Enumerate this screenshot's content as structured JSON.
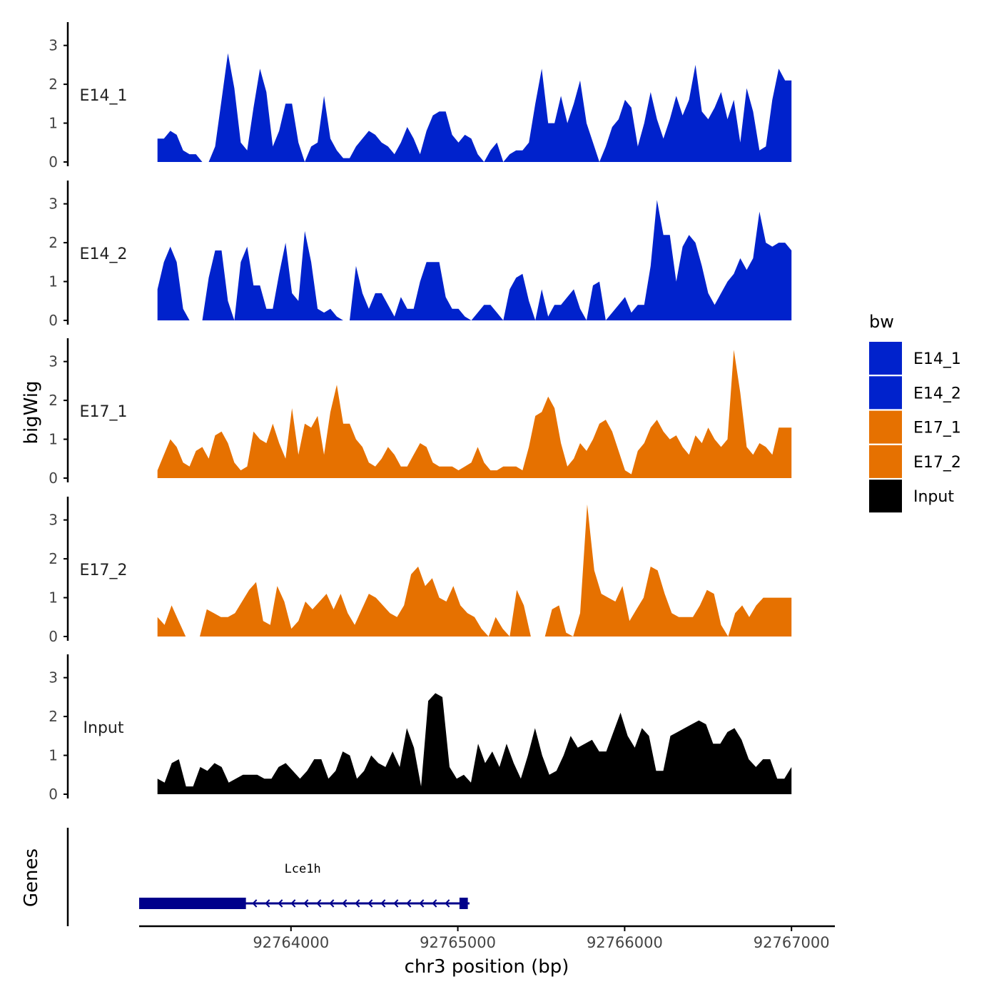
{
  "chart_data": {
    "type": "area",
    "title": "",
    "ylabel": "bigWig",
    "xlabel": "chr3 position (bp)",
    "xlim": [
      92763090,
      92767260
    ],
    "ylim": [
      0,
      3.6
    ],
    "yticks": [
      "0",
      "1",
      "2",
      "3"
    ],
    "xticks": [
      {
        "value": 92764000,
        "label": "92764000"
      },
      {
        "value": 92765000,
        "label": "92765000"
      },
      {
        "value": 92766000,
        "label": "92766000"
      },
      {
        "value": 92767000,
        "label": "92767000"
      }
    ],
    "legend": {
      "title": "bw",
      "position": "right",
      "entries": [
        {
          "label": "E14_1",
          "color": "#0022CC"
        },
        {
          "label": "E14_2",
          "color": "#0022CC"
        },
        {
          "label": "E17_1",
          "color": "#E67100"
        },
        {
          "label": "E17_2",
          "color": "#E67100"
        },
        {
          "label": "Input",
          "color": "#000000"
        }
      ]
    },
    "tracks": [
      {
        "name": "E14_1",
        "color": "#0022CC",
        "x_start": 92763200,
        "x_end": 92767000,
        "values": [
          0.6,
          0.6,
          0.8,
          0.7,
          0.3,
          0.2,
          0.2,
          0,
          0,
          0.4,
          1.6,
          2.8,
          1.9,
          0.5,
          0.3,
          1.4,
          2.4,
          1.8,
          0.4,
          0.8,
          1.5,
          1.5,
          0.5,
          0,
          0.4,
          0.5,
          1.7,
          0.6,
          0.3,
          0.1,
          0.1,
          0.4,
          0.6,
          0.8,
          0.7,
          0.5,
          0.4,
          0.2,
          0.5,
          0.9,
          0.6,
          0.2,
          0.8,
          1.2,
          1.3,
          1.3,
          0.7,
          0.5,
          0.7,
          0.6,
          0.2,
          0,
          0.3,
          0.5,
          0,
          0.2,
          0.3,
          0.3,
          0.5,
          1.5,
          2.4,
          1.0,
          1.0,
          1.7,
          1.0,
          1.5,
          2.1,
          1.0,
          0.5,
          0,
          0.4,
          0.9,
          1.1,
          1.6,
          1.4,
          0.4,
          1.0,
          1.8,
          1.1,
          0.6,
          1.1,
          1.7,
          1.2,
          1.6,
          2.5,
          1.3,
          1.1,
          1.4,
          1.8,
          1.1,
          1.6,
          0.5,
          1.9,
          1.3,
          0.3,
          0.4,
          1.6,
          2.4,
          2.1,
          2.1
        ]
      },
      {
        "name": "E14_2",
        "color": "#0022CC",
        "x_start": 92763200,
        "x_end": 92767000,
        "values": [
          0.8,
          1.5,
          1.9,
          1.5,
          0.3,
          0,
          0,
          0,
          1.1,
          1.8,
          1.8,
          0.5,
          0,
          1.5,
          1.9,
          0.9,
          0.9,
          0.3,
          0.3,
          1.2,
          2.0,
          0.7,
          0.5,
          2.3,
          1.5,
          0.3,
          0.2,
          0.3,
          0.1,
          0,
          0,
          1.4,
          0.7,
          0.3,
          0.7,
          0.7,
          0.4,
          0.1,
          0.6,
          0.3,
          0.3,
          1.0,
          1.5,
          1.5,
          1.5,
          0.6,
          0.3,
          0.3,
          0.1,
          0,
          0.2,
          0.4,
          0.4,
          0.2,
          0,
          0.8,
          1.1,
          1.2,
          0.5,
          0,
          0.8,
          0.1,
          0.4,
          0.4,
          0.6,
          0.8,
          0.3,
          0,
          0.9,
          1.0,
          0,
          0.2,
          0.4,
          0.6,
          0.2,
          0.4,
          0.4,
          1.4,
          3.1,
          2.2,
          2.2,
          1.0,
          1.9,
          2.2,
          2.0,
          1.4,
          0.7,
          0.4,
          0.7,
          1.0,
          1.2,
          1.6,
          1.3,
          1.6,
          2.8,
          2.0,
          1.9,
          2.0,
          2.0,
          1.8
        ]
      },
      {
        "name": "E17_1",
        "color": "#E67100",
        "x_start": 92763200,
        "x_end": 92767000,
        "values": [
          0.2,
          0.6,
          1.0,
          0.8,
          0.4,
          0.3,
          0.7,
          0.8,
          0.5,
          1.1,
          1.2,
          0.9,
          0.4,
          0.2,
          0.3,
          1.2,
          1.0,
          0.9,
          1.4,
          0.9,
          0.5,
          1.8,
          0.6,
          1.4,
          1.3,
          1.6,
          0.6,
          1.7,
          2.4,
          1.4,
          1.4,
          1.0,
          0.8,
          0.4,
          0.3,
          0.5,
          0.8,
          0.6,
          0.3,
          0.3,
          0.6,
          0.9,
          0.8,
          0.4,
          0.3,
          0.3,
          0.3,
          0.2,
          0.3,
          0.4,
          0.8,
          0.4,
          0.2,
          0.2,
          0.3,
          0.3,
          0.3,
          0.2,
          0.8,
          1.6,
          1.7,
          2.1,
          1.8,
          0.9,
          0.3,
          0.5,
          0.9,
          0.7,
          1.0,
          1.4,
          1.5,
          1.2,
          0.7,
          0.2,
          0.1,
          0.7,
          0.9,
          1.3,
          1.5,
          1.2,
          1.0,
          1.1,
          0.8,
          0.6,
          1.1,
          0.9,
          1.3,
          1.0,
          0.8,
          1.0,
          3.3,
          2.2,
          0.8,
          0.6,
          0.9,
          0.8,
          0.6,
          1.3,
          1.3,
          1.3
        ]
      },
      {
        "name": "E17_2",
        "color": "#E67100",
        "x_start": 92763200,
        "x_end": 92767000,
        "values": [
          0.5,
          0.3,
          0.8,
          0.4,
          0,
          0,
          0,
          0.7,
          0.6,
          0.5,
          0.5,
          0.6,
          0.9,
          1.2,
          1.4,
          0.4,
          0.3,
          1.3,
          0.9,
          0.2,
          0.4,
          0.9,
          0.7,
          0.9,
          1.1,
          0.7,
          1.1,
          0.6,
          0.3,
          0.7,
          1.1,
          1.0,
          0.8,
          0.6,
          0.5,
          0.8,
          1.6,
          1.8,
          1.3,
          1.5,
          1.0,
          0.9,
          1.3,
          0.8,
          0.6,
          0.5,
          0.2,
          0,
          0.5,
          0.2,
          0,
          1.2,
          0.8,
          0,
          0,
          0,
          0.7,
          0.8,
          0.1,
          0,
          0.6,
          3.4,
          1.7,
          1.1,
          1.0,
          0.9,
          1.3,
          0.4,
          0.7,
          1.0,
          1.8,
          1.7,
          1.1,
          0.6,
          0.5,
          0.5,
          0.5,
          0.8,
          1.2,
          1.1,
          0.3,
          0,
          0.6,
          0.8,
          0.5,
          0.8,
          1.0,
          1.0,
          1.0,
          1.0,
          1.0
        ]
      },
      {
        "name": "Input",
        "color": "#000000",
        "x_start": 92763200,
        "x_end": 92767000,
        "values": [
          0.4,
          0.3,
          0.8,
          0.9,
          0.2,
          0.2,
          0.7,
          0.6,
          0.8,
          0.7,
          0.3,
          0.4,
          0.5,
          0.5,
          0.5,
          0.4,
          0.4,
          0.7,
          0.8,
          0.6,
          0.4,
          0.6,
          0.9,
          0.9,
          0.4,
          0.6,
          1.1,
          1.0,
          0.4,
          0.6,
          1.0,
          0.8,
          0.7,
          1.1,
          0.7,
          1.7,
          1.2,
          0.2,
          2.4,
          2.6,
          2.5,
          0.7,
          0.4,
          0.5,
          0.3,
          1.3,
          0.8,
          1.1,
          0.7,
          1.3,
          0.8,
          0.4,
          1.0,
          1.7,
          1.0,
          0.5,
          0.6,
          1.0,
          1.5,
          1.2,
          1.3,
          1.4,
          1.1,
          1.1,
          1.6,
          2.1,
          1.5,
          1.2,
          1.7,
          1.5,
          0.6,
          0.6,
          1.5,
          1.6,
          1.7,
          1.8,
          1.9,
          1.8,
          1.3,
          1.3,
          1.6,
          1.7,
          1.4,
          0.9,
          0.7,
          0.9,
          0.9,
          0.4,
          0.4,
          0.7
        ]
      }
    ],
    "genes": [
      {
        "label": "Lce1h",
        "strand": "-",
        "color": "#00008B",
        "start": 92763090,
        "end": 92765070,
        "blocks": [
          {
            "start": 92763090,
            "end": 92763730
          },
          {
            "start": 92765010,
            "end": 92765060
          }
        ]
      }
    ],
    "gene_track_label": "Genes"
  }
}
